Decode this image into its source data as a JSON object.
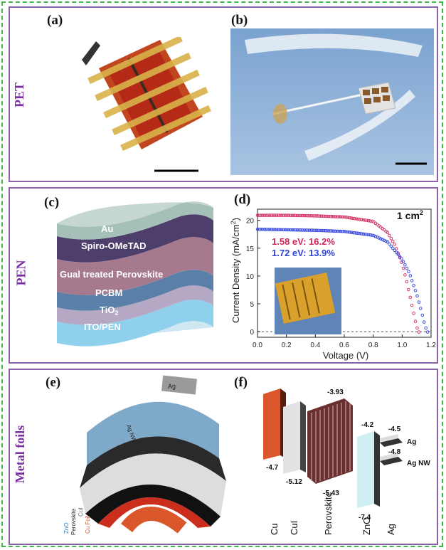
{
  "sections": {
    "pet": {
      "label": "PET"
    },
    "pen": {
      "label": "PEN"
    },
    "metal": {
      "label": "Metal foils"
    }
  },
  "panels": {
    "a": "(a)",
    "b": "(b)",
    "c": "(c)",
    "d": "(d)",
    "e": "(e)",
    "f": "(f)"
  },
  "layers_c": [
    "Au",
    "Spiro-OMeTAD",
    "Gual treated Perovskite",
    "PCBM",
    "TiO",
    "ITO/PEN"
  ],
  "layers_c_sub": "2",
  "chart_data": {
    "type": "scatter",
    "xlabel": "Voltage (V)",
    "ylabel": "Current Density (mA/cm",
    "ylabel_sup": "2",
    "ylabel_end": ")",
    "xlim": [
      0.0,
      1.2
    ],
    "ylim": [
      -1,
      22
    ],
    "xticks": [
      "0.0",
      "0.2",
      "0.4",
      "0.6",
      "0.8",
      "1.0",
      "1.2"
    ],
    "yticks": [
      "0",
      "5",
      "10",
      "15",
      "20"
    ],
    "annotation": "1 cm",
    "annotation_sup": "2",
    "series": [
      {
        "name": "1.58 eV: 16.2%",
        "color": "#d2265a",
        "x": [
          0.0,
          0.2,
          0.4,
          0.6,
          0.8,
          0.9,
          0.95,
          1.0,
          1.03,
          1.06,
          1.08,
          1.1,
          1.12
        ],
        "y": [
          20.9,
          20.9,
          20.8,
          20.6,
          19.8,
          17.8,
          15.6,
          12.2,
          9.2,
          5.7,
          3.3,
          0.9,
          -0.3
        ]
      },
      {
        "name": "1.72 eV: 13.9%",
        "color": "#2b3fe0",
        "x": [
          0.0,
          0.2,
          0.4,
          0.6,
          0.8,
          0.9,
          1.0,
          1.05,
          1.1,
          1.13,
          1.16,
          1.18
        ],
        "y": [
          18.4,
          18.3,
          18.2,
          18.0,
          17.3,
          16.1,
          13.0,
          10.5,
          6.8,
          4.0,
          0.9,
          -0.3
        ]
      }
    ]
  },
  "device_e": {
    "top_label": "Ag",
    "nw_label": "Ag NW",
    "stack_labels": [
      "ZnO",
      "Perovskite",
      "CuI",
      "Cu Foil"
    ]
  },
  "energy_f": {
    "materials": [
      "Cu",
      "CuI",
      "Perovskite",
      "ZnO",
      "Ag"
    ],
    "levels": {
      "cu": "-4.7",
      "cui_bottom": "-5.12",
      "pvk_top": "-3.93",
      "pvk_bottom": "-5.43",
      "zno_top": "-4.2",
      "zno_bottom": "-7.4",
      "ag": "-4.5",
      "agnw": "-4.8",
      "ag_label": "Ag",
      "agnw_label": "Ag NW"
    }
  },
  "colors": {
    "border": "#8a62a8",
    "dash": "#3fb74a",
    "sky": "#8fb3d9",
    "cu": "#d9572a",
    "pvk": "#8e4a4a",
    "zno": "#cfeef2"
  }
}
